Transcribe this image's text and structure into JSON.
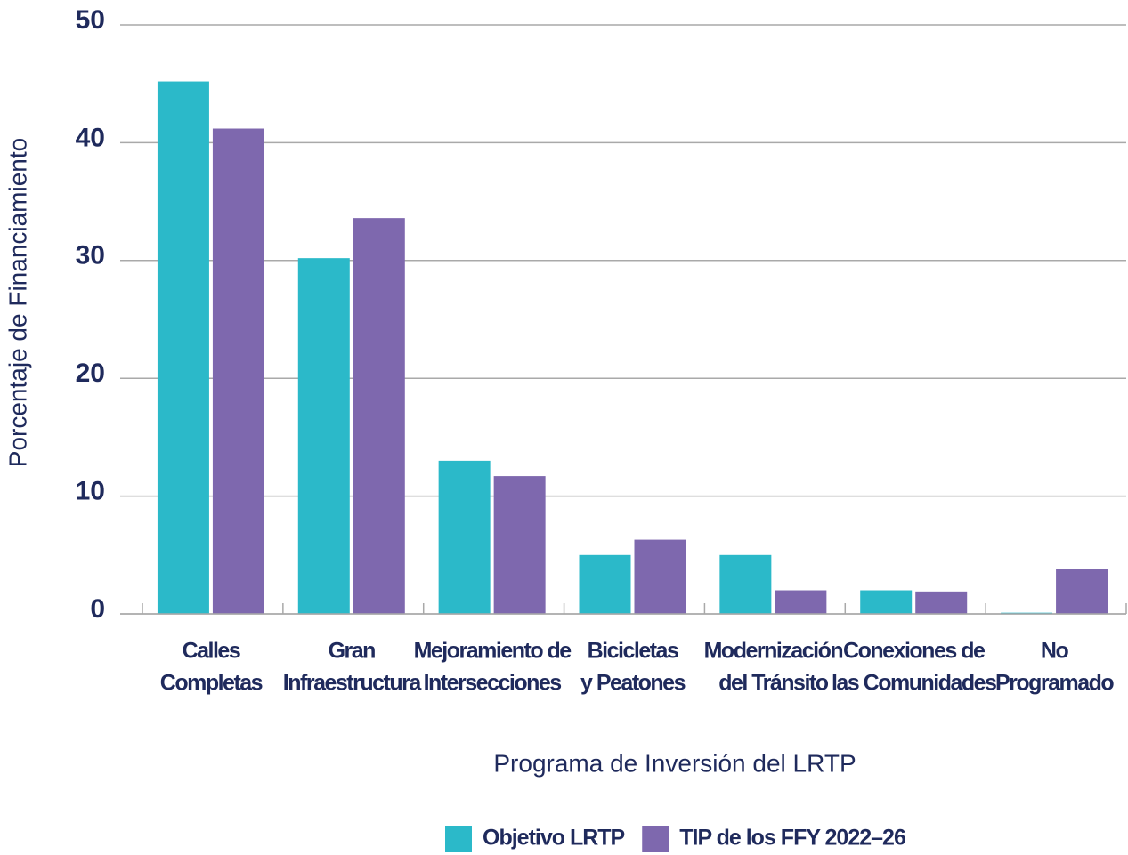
{
  "chart_data": {
    "type": "bar",
    "categories": [
      [
        "Calles",
        "Completas"
      ],
      [
        "Gran",
        "Infraestructura"
      ],
      [
        "Mejoramiento de",
        "Intersecciones"
      ],
      [
        "Bicicletas",
        "y Peatones"
      ],
      [
        "Modernización",
        "del Tránsito"
      ],
      [
        "Conexiones de",
        "las Comunidades"
      ],
      [
        "No",
        "Programado"
      ]
    ],
    "series": [
      {
        "name": "Objetivo LRTP",
        "color": "#2bb9c9",
        "values": [
          45.2,
          30.2,
          13.0,
          5.0,
          5.0,
          2.0,
          0.1
        ]
      },
      {
        "name": "TIP de los FFY 2022–26",
        "color": "#7e68ae",
        "values": [
          41.2,
          33.6,
          11.7,
          6.3,
          2.0,
          1.9,
          3.8
        ]
      }
    ],
    "ylabel": "Porcentaje de Financiamiento",
    "xlabel": "Programa de Inversión del LRTP",
    "ylim": [
      0,
      50
    ],
    "yticks": [
      0,
      10,
      20,
      30,
      40,
      50
    ],
    "grid": true,
    "legend": "bottom"
  }
}
